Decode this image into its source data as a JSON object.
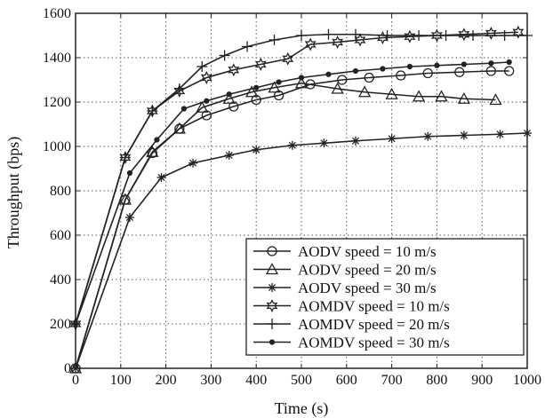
{
  "chart_data": {
    "type": "line",
    "title": "",
    "xlabel": "Time (s)",
    "ylabel": "Throughput (bps)",
    "xlim": [
      0,
      1000
    ],
    "ylim": [
      0,
      1600
    ],
    "xticks": [
      "0",
      "100",
      "200",
      "300",
      "400",
      "500",
      "600",
      "700",
      "800",
      "900",
      "1000"
    ],
    "yticks": [
      "0",
      "200",
      "400",
      "600",
      "800",
      "1000",
      "1200",
      "1400",
      "1600"
    ],
    "grid": true,
    "legend_position": "bottom-right",
    "series": [
      {
        "name": "AODV speed = 10 m/s",
        "marker": "circle",
        "x": [
          0,
          110,
          170,
          230,
          290,
          350,
          400,
          450,
          520,
          590,
          650,
          720,
          780,
          850,
          920,
          960
        ],
        "y": [
          0,
          760,
          970,
          1080,
          1140,
          1180,
          1210,
          1230,
          1280,
          1300,
          1310,
          1320,
          1330,
          1335,
          1340,
          1340
        ]
      },
      {
        "name": "AODV speed = 20 m/s",
        "marker": "triangle",
        "x": [
          0,
          110,
          170,
          230,
          280,
          340,
          390,
          440,
          500,
          580,
          640,
          700,
          760,
          810,
          860,
          930
        ],
        "y": [
          0,
          760,
          975,
          1080,
          1175,
          1215,
          1245,
          1265,
          1285,
          1260,
          1245,
          1235,
          1225,
          1225,
          1215,
          1210
        ]
      },
      {
        "name": "AODV speed = 30 m/s",
        "marker": "asterisk",
        "x": [
          0,
          120,
          190,
          260,
          340,
          400,
          480,
          550,
          620,
          700,
          780,
          860,
          940,
          1000
        ],
        "y": [
          0,
          680,
          860,
          925,
          960,
          985,
          1005,
          1015,
          1025,
          1035,
          1045,
          1050,
          1055,
          1060
        ]
      },
      {
        "name": "AOMDV speed = 10 m/s",
        "marker": "star",
        "x": [
          0,
          110,
          170,
          230,
          290,
          350,
          410,
          470,
          520,
          580,
          630,
          680,
          740,
          800,
          860,
          920,
          980
        ],
        "y": [
          200,
          950,
          1160,
          1250,
          1310,
          1345,
          1370,
          1395,
          1460,
          1470,
          1480,
          1490,
          1495,
          1500,
          1505,
          1510,
          1515
        ]
      },
      {
        "name": "AOMDV speed = 20 m/s",
        "marker": "plus",
        "x": [
          0,
          110,
          170,
          230,
          280,
          330,
          380,
          440,
          500,
          560,
          620,
          690,
          760,
          820,
          880,
          950,
          1000
        ],
        "y": [
          200,
          950,
          1160,
          1260,
          1360,
          1410,
          1450,
          1480,
          1500,
          1505,
          1505,
          1500,
          1500,
          1500,
          1500,
          1500,
          1500
        ]
      },
      {
        "name": "AOMDV speed = 30 m/s",
        "marker": "dot",
        "x": [
          0,
          120,
          180,
          240,
          290,
          340,
          400,
          450,
          500,
          560,
          620,
          680,
          740,
          800,
          860,
          920,
          960
        ],
        "y": [
          200,
          880,
          1030,
          1170,
          1205,
          1235,
          1265,
          1290,
          1310,
          1325,
          1340,
          1350,
          1360,
          1365,
          1370,
          1375,
          1380
        ]
      }
    ]
  }
}
